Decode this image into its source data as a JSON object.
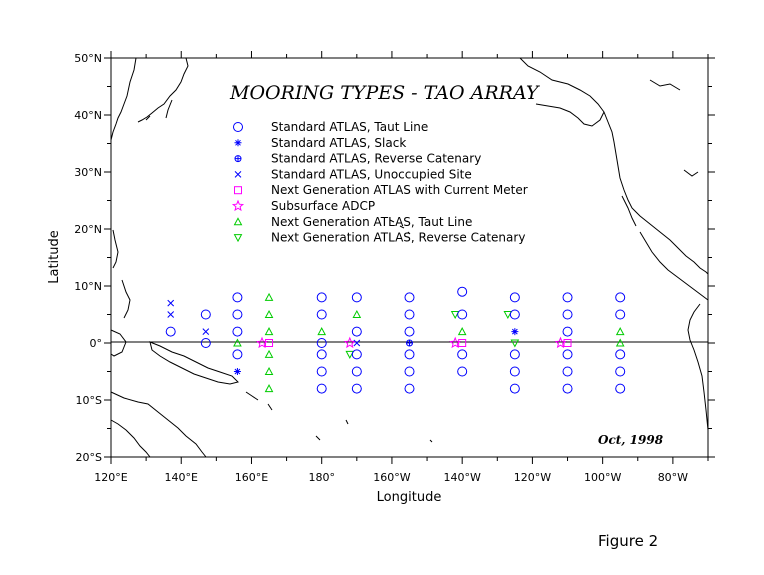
{
  "title": "MOORING TYPES - TAO ARRAY",
  "date_label": "Oct, 1998",
  "figure_label": "Figure 2",
  "axes": {
    "xlabel": "Longitude",
    "ylabel": "Latitude",
    "lon_range": [
      120,
      290
    ],
    "lat_range": [
      -20,
      50
    ],
    "xticks": [
      {
        "lon": 120,
        "label": "120°E"
      },
      {
        "lon": 140,
        "label": "140°E"
      },
      {
        "lon": 160,
        "label": "160°E"
      },
      {
        "lon": 180,
        "label": "180°"
      },
      {
        "lon": 200,
        "label": "160°W"
      },
      {
        "lon": 220,
        "label": "140°W"
      },
      {
        "lon": 240,
        "label": "120°W"
      },
      {
        "lon": 260,
        "label": "100°W"
      },
      {
        "lon": 280,
        "label": "80°W"
      }
    ],
    "yticks": [
      {
        "lat": 50,
        "label": "50°N"
      },
      {
        "lat": 40,
        "label": "40°N"
      },
      {
        "lat": 30,
        "label": "30°N"
      },
      {
        "lat": 20,
        "label": "20°N"
      },
      {
        "lat": 10,
        "label": "10°N"
      },
      {
        "lat": 0,
        "label": "0°"
      },
      {
        "lat": -10,
        "label": "10°S"
      },
      {
        "lat": -20,
        "label": "20°S"
      }
    ]
  },
  "legend": [
    {
      "symbol": "circle",
      "color": "#0000ff",
      "label": "Standard ATLAS, Taut Line"
    },
    {
      "symbol": "asterisk",
      "color": "#0000ff",
      "label": "Standard ATLAS, Slack"
    },
    {
      "symbol": "diamond",
      "color": "#0000ff",
      "label": "Standard ATLAS, Reverse Catenary"
    },
    {
      "symbol": "x",
      "color": "#0000ff",
      "label": "Standard ATLAS, Unoccupied Site"
    },
    {
      "symbol": "square",
      "color": "#ff00ff",
      "label": "Next Generation ATLAS with Current Meter"
    },
    {
      "symbol": "star",
      "color": "#ff00ff",
      "label": "Subsurface ADCP"
    },
    {
      "symbol": "triangle-up",
      "color": "#00cc00",
      "label": "Next Generation ATLAS, Taut Line"
    },
    {
      "symbol": "triangle-down",
      "color": "#00cc00",
      "label": "Next Generation ATLAS, Reverse Catenary"
    }
  ],
  "moorings": [
    {
      "lon": 137,
      "lat": 7,
      "type": "x"
    },
    {
      "lon": 137,
      "lat": 5,
      "type": "x"
    },
    {
      "lon": 137,
      "lat": 2,
      "type": "circle"
    },
    {
      "lon": 147,
      "lat": 5,
      "type": "circle"
    },
    {
      "lon": 147,
      "lat": 2,
      "type": "x"
    },
    {
      "lon": 147,
      "lat": 0,
      "type": "circle"
    },
    {
      "lon": 156,
      "lat": 8,
      "type": "circle"
    },
    {
      "lon": 156,
      "lat": 5,
      "type": "circle"
    },
    {
      "lon": 156,
      "lat": 2,
      "type": "circle"
    },
    {
      "lon": 156,
      "lat": 0,
      "type": "triangle-up"
    },
    {
      "lon": 156,
      "lat": -2,
      "type": "circle"
    },
    {
      "lon": 156,
      "lat": -5,
      "type": "asterisk"
    },
    {
      "lon": 165,
      "lat": 8,
      "type": "triangle-up"
    },
    {
      "lon": 165,
      "lat": 5,
      "type": "triangle-up"
    },
    {
      "lon": 165,
      "lat": 2,
      "type": "triangle-up"
    },
    {
      "lon": 163,
      "lat": 0,
      "type": "star"
    },
    {
      "lon": 165,
      "lat": 0,
      "type": "square"
    },
    {
      "lon": 165,
      "lat": -2,
      "type": "triangle-up"
    },
    {
      "lon": 165,
      "lat": -5,
      "type": "triangle-up"
    },
    {
      "lon": 165,
      "lat": -8,
      "type": "triangle-up"
    },
    {
      "lon": 180,
      "lat": 8,
      "type": "circle"
    },
    {
      "lon": 180,
      "lat": 5,
      "type": "circle"
    },
    {
      "lon": 180,
      "lat": 2,
      "type": "triangle-up"
    },
    {
      "lon": 180,
      "lat": 0,
      "type": "circle"
    },
    {
      "lon": 180,
      "lat": -2,
      "type": "circle"
    },
    {
      "lon": 180,
      "lat": -5,
      "type": "circle"
    },
    {
      "lon": 180,
      "lat": -8,
      "type": "circle"
    },
    {
      "lon": 190,
      "lat": 8,
      "type": "circle"
    },
    {
      "lon": 190,
      "lat": 5,
      "type": "triangle-up"
    },
    {
      "lon": 190,
      "lat": 2,
      "type": "circle"
    },
    {
      "lon": 188,
      "lat": 0,
      "type": "star"
    },
    {
      "lon": 190,
      "lat": 0,
      "type": "x"
    },
    {
      "lon": 188,
      "lat": -2,
      "type": "triangle-down"
    },
    {
      "lon": 190,
      "lat": -2,
      "type": "circle"
    },
    {
      "lon": 190,
      "lat": -5,
      "type": "circle"
    },
    {
      "lon": 190,
      "lat": -8,
      "type": "circle"
    },
    {
      "lon": 205,
      "lat": 8,
      "type": "circle"
    },
    {
      "lon": 205,
      "lat": 5,
      "type": "circle"
    },
    {
      "lon": 205,
      "lat": 2,
      "type": "circle"
    },
    {
      "lon": 205,
      "lat": 0,
      "type": "diamond"
    },
    {
      "lon": 205,
      "lat": -2,
      "type": "circle"
    },
    {
      "lon": 205,
      "lat": -5,
      "type": "circle"
    },
    {
      "lon": 205,
      "lat": -8,
      "type": "circle"
    },
    {
      "lon": 220,
      "lat": 9,
      "type": "circle"
    },
    {
      "lon": 218,
      "lat": 5,
      "type": "triangle-down"
    },
    {
      "lon": 220,
      "lat": 5,
      "type": "circle"
    },
    {
      "lon": 220,
      "lat": 2,
      "type": "triangle-up"
    },
    {
      "lon": 218,
      "lat": 0,
      "type": "star"
    },
    {
      "lon": 220,
      "lat": 0,
      "type": "square"
    },
    {
      "lon": 220,
      "lat": -2,
      "type": "circle"
    },
    {
      "lon": 220,
      "lat": -5,
      "type": "circle"
    },
    {
      "lon": 233,
      "lat": 5,
      "type": "triangle-down"
    },
    {
      "lon": 235,
      "lat": 8,
      "type": "circle"
    },
    {
      "lon": 235,
      "lat": 5,
      "type": "circle"
    },
    {
      "lon": 235,
      "lat": 2,
      "type": "asterisk"
    },
    {
      "lon": 235,
      "lat": 0,
      "type": "triangle-down"
    },
    {
      "lon": 235,
      "lat": -2,
      "type": "circle"
    },
    {
      "lon": 235,
      "lat": -5,
      "type": "circle"
    },
    {
      "lon": 235,
      "lat": -8,
      "type": "circle"
    },
    {
      "lon": 250,
      "lat": 8,
      "type": "circle"
    },
    {
      "lon": 250,
      "lat": 5,
      "type": "circle"
    },
    {
      "lon": 250,
      "lat": 2,
      "type": "circle"
    },
    {
      "lon": 248,
      "lat": 0,
      "type": "star"
    },
    {
      "lon": 250,
      "lat": 0,
      "type": "square"
    },
    {
      "lon": 250,
      "lat": -2,
      "type": "circle"
    },
    {
      "lon": 250,
      "lat": -5,
      "type": "circle"
    },
    {
      "lon": 250,
      "lat": -8,
      "type": "circle"
    },
    {
      "lon": 265,
      "lat": 8,
      "type": "circle"
    },
    {
      "lon": 265,
      "lat": 5,
      "type": "circle"
    },
    {
      "lon": 265,
      "lat": 2,
      "type": "triangle-up"
    },
    {
      "lon": 265,
      "lat": 0,
      "type": "triangle-up"
    },
    {
      "lon": 265,
      "lat": -2,
      "type": "circle"
    },
    {
      "lon": 265,
      "lat": -5,
      "type": "circle"
    },
    {
      "lon": 265,
      "lat": -8,
      "type": "circle"
    }
  ],
  "colors": {
    "standard_atlas": "#0000ff",
    "next_gen_current": "#ff00ff",
    "next_gen": "#00cc00",
    "land_outline": "#000000"
  }
}
